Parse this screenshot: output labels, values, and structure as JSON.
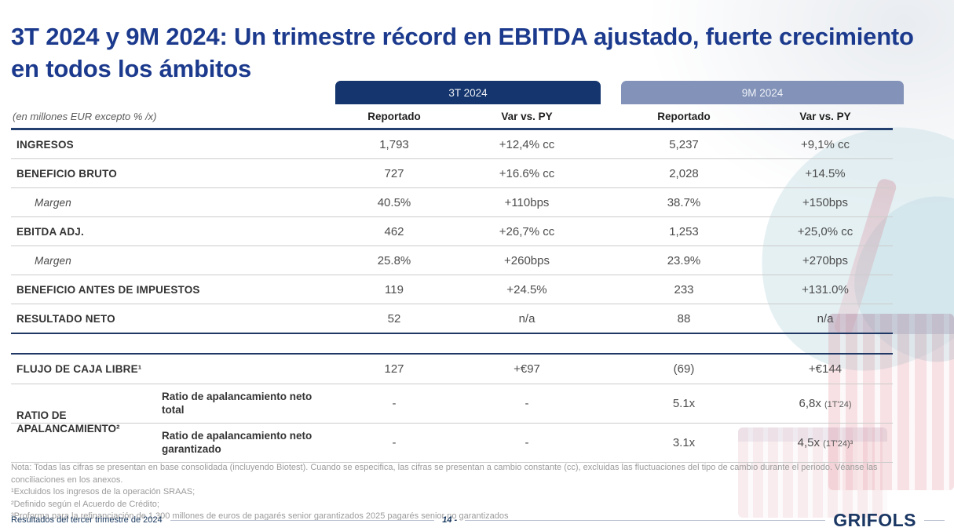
{
  "slide": {
    "title": "3T 2024 y 9M 2024: Un trimestre récord en EBITDA ajustado, fuerte crecimiento en todos los ámbitos",
    "unit_note": "(en millones EUR excepto % /x)",
    "period_headers": {
      "q3": "3T 2024",
      "ninem": "9M 2024"
    },
    "column_headers": {
      "rep1": "Reportado",
      "var1": "Var vs. PY",
      "rep2": "Reportado",
      "var2": "Var vs. PY"
    }
  },
  "table": {
    "rows": [
      {
        "label": "INGRESOS",
        "values": [
          "1,793",
          "+12,4% cc",
          "5,237",
          "+9,1% cc"
        ]
      },
      {
        "label": "BENEFICIO BRUTO",
        "values": [
          "727",
          "+16.6% cc",
          "2,028",
          "+14.5%"
        ]
      },
      {
        "label": "Margen",
        "values": [
          "40.5%",
          "+110bps",
          "38.7%",
          "+150bps"
        ]
      },
      {
        "label": "EBITDA ADJ.",
        "values": [
          "462",
          "+26,7% cc",
          "1,253",
          "+25,0% cc"
        ]
      },
      {
        "label": "Margen",
        "values": [
          "25.8%",
          "+260bps",
          "23.9%",
          "+270bps"
        ]
      },
      {
        "label": "BENEFICIO ANTES DE IMPUESTOS",
        "values": [
          "119",
          "+24.5%",
          "233",
          "+131.0%"
        ]
      },
      {
        "label": "RESULTADO NETO",
        "values": [
          "52",
          "n/a",
          "88",
          "n/a"
        ]
      }
    ],
    "fcf_row": {
      "label": "FLUJO DE CAJA LIBRE¹",
      "values": [
        "127",
        "+€97",
        "(69)",
        "+€144"
      ]
    },
    "leverage": {
      "label": "RATIO DE APALANCAMIENTO²",
      "rows": [
        {
          "sublabel": "Ratio de apalancamiento neto total",
          "values": [
            "-",
            "-",
            "5.1x",
            "6,8x"
          ],
          "note": "(1T'24)"
        },
        {
          "sublabel": "Ratio de apalancamiento neto garantizado",
          "values": [
            "-",
            "-",
            "3.1x",
            "4,5x"
          ],
          "note": "(1T'24)³"
        }
      ]
    }
  },
  "footnotes": {
    "nota": "Nota: Todas las cifras se presentan en base consolidada (incluyendo Biotest). Cuando se especifica, las cifras se presentan a cambio constante (cc), excluidas las fluctuaciones del tipo de cambio durante el periodo. Véanse las conciliaciones en los anexos.",
    "fn1": "¹Excluidos los ingresos de la operación SRAAS;",
    "fn2": "²Definido según el Acuerdo de Crédito;",
    "fn3": "³Proforma para la refinanciación de 1.300 millones de euros de pagarés senior garantizados 2025 pagarés senior no garantizados"
  },
  "footer": {
    "left": "Resultados del tercer trimestre de 2024",
    "page": "14 -",
    "logo": "GRIFOLS"
  },
  "colors": {
    "title_navy": "#1c3a8d",
    "pill_dark": "#14356d",
    "pill_light": "#8292b8",
    "line_navy": "#1f3864"
  }
}
